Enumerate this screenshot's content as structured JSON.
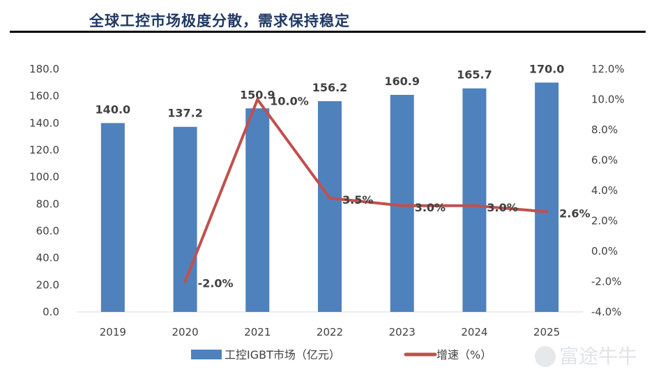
{
  "header": {
    "title": "全球工控市场极度分散，需求保持稳定"
  },
  "watermark": "富途牛牛",
  "chart_data": {
    "type": "bar+line",
    "categories": [
      "2019",
      "2020",
      "2021",
      "2022",
      "2023",
      "2024",
      "2025"
    ],
    "series": [
      {
        "name": "工控IGBT市场（亿元）",
        "type": "bar",
        "axis": "left",
        "color": "#4f81bd",
        "values": [
          140.0,
          137.2,
          150.9,
          156.2,
          160.9,
          165.7,
          170.0
        ],
        "labels": [
          "140.0",
          "137.2",
          "150.9",
          "156.2",
          "160.9",
          "165.7",
          "170.0"
        ]
      },
      {
        "name": "增速（%）",
        "type": "line",
        "axis": "right",
        "color": "#c0504d",
        "values": [
          null,
          -2.0,
          10.0,
          3.5,
          3.0,
          3.0,
          2.6
        ],
        "labels": [
          "",
          "-2.0%",
          "10.0%",
          "3.5%",
          "3.0%",
          "3.0%",
          "2.6%"
        ]
      }
    ],
    "y_left": {
      "range": [
        0,
        180
      ],
      "ticks": [
        "0.0",
        "20.0",
        "40.0",
        "60.0",
        "80.0",
        "100.0",
        "120.0",
        "140.0",
        "160.0",
        "180.0"
      ]
    },
    "y_right": {
      "range": [
        -4,
        12
      ],
      "ticks": [
        "-4.0%",
        "-2.0%",
        "0.0%",
        "2.0%",
        "4.0%",
        "6.0%",
        "8.0%",
        "10.0%",
        "12.0%"
      ]
    },
    "grid": false,
    "legend": "bottom"
  }
}
